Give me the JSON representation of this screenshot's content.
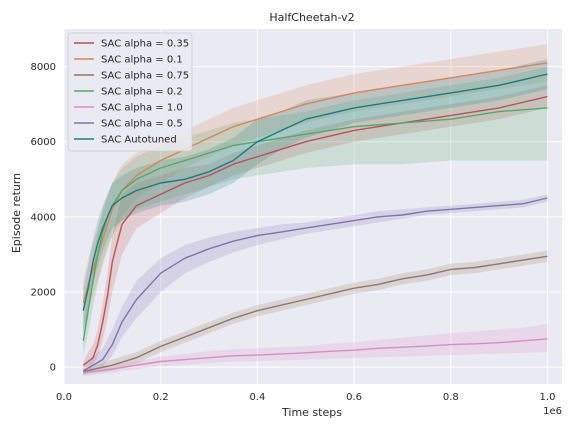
{
  "chart_data": {
    "type": "line",
    "title": "HalfCheetah-v2",
    "xlabel": "Time steps",
    "ylabel": "Episode return",
    "x_multiplier_label": "1e6",
    "xlim": [
      0.0,
      1.03
    ],
    "ylim": [
      -450,
      9000
    ],
    "x_ticks": [
      0.0,
      0.2,
      0.4,
      0.6,
      0.8,
      1.0
    ],
    "x_tick_labels": [
      "0.0",
      "0.2",
      "0.4",
      "0.6",
      "0.8",
      "1.0"
    ],
    "y_ticks": [
      0,
      2000,
      4000,
      6000,
      8000
    ],
    "y_tick_labels": [
      "0",
      "2000",
      "4000",
      "6000",
      "8000"
    ],
    "grid": true,
    "legend_position": "top-left",
    "series": [
      {
        "name": "SAC alpha = 0.35",
        "color": "#c44e52",
        "x": [
          0.04,
          0.05,
          0.06,
          0.07,
          0.08,
          0.09,
          0.1,
          0.12,
          0.15,
          0.2,
          0.25,
          0.3,
          0.35,
          0.4,
          0.45,
          0.5,
          0.6,
          0.7,
          0.8,
          0.9,
          1.0
        ],
        "y": [
          50,
          150,
          250,
          600,
          1200,
          1900,
          2800,
          3800,
          4300,
          4600,
          4900,
          5100,
          5400,
          5600,
          5800,
          6000,
          6300,
          6500,
          6700,
          6900,
          7200
        ],
        "lower": [
          0,
          0,
          50,
          300,
          700,
          1300,
          2000,
          3000,
          3700,
          4100,
          4500,
          4800,
          5100,
          5300,
          5500,
          5700,
          6000,
          6200,
          6400,
          6600,
          6900
        ],
        "upper": [
          150,
          400,
          600,
          1000,
          1700,
          2500,
          3500,
          4600,
          4900,
          5100,
          5300,
          5400,
          5700,
          5900,
          6100,
          6300,
          6600,
          6800,
          7000,
          7200,
          7500
        ]
      },
      {
        "name": "SAC alpha = 0.1",
        "color": "#dd8452",
        "x": [
          0.04,
          0.05,
          0.06,
          0.07,
          0.08,
          0.09,
          0.1,
          0.12,
          0.15,
          0.2,
          0.25,
          0.3,
          0.35,
          0.4,
          0.45,
          0.5,
          0.6,
          0.7,
          0.8,
          0.9,
          1.0
        ],
        "y": [
          1700,
          2200,
          2600,
          3000,
          3400,
          3800,
          4200,
          4700,
          5100,
          5500,
          5800,
          6100,
          6400,
          6600,
          6800,
          7000,
          7300,
          7500,
          7700,
          7900,
          8100
        ],
        "lower": [
          1000,
          1500,
          1900,
          2300,
          2700,
          3100,
          3500,
          4000,
          4500,
          4900,
          5300,
          5600,
          5900,
          6100,
          6300,
          6500,
          6800,
          7000,
          7200,
          7400,
          7600
        ],
        "upper": [
          2300,
          2900,
          3300,
          3700,
          4100,
          4500,
          4900,
          5400,
          5700,
          6100,
          6300,
          6600,
          6900,
          7100,
          7300,
          7500,
          7800,
          8000,
          8200,
          8400,
          8600
        ]
      },
      {
        "name": "SAC alpha = 0.75",
        "color": "#937860",
        "x": [
          0.04,
          0.1,
          0.15,
          0.2,
          0.25,
          0.3,
          0.35,
          0.4,
          0.45,
          0.5,
          0.55,
          0.6,
          0.65,
          0.7,
          0.75,
          0.8,
          0.85,
          0.9,
          0.95,
          1.0
        ],
        "y": [
          -120,
          50,
          250,
          550,
          800,
          1050,
          1300,
          1500,
          1650,
          1800,
          1950,
          2100,
          2200,
          2350,
          2450,
          2600,
          2650,
          2750,
          2850,
          2950
        ],
        "lower": [
          -200,
          -100,
          100,
          400,
          650,
          900,
          1150,
          1350,
          1500,
          1650,
          1800,
          1950,
          2050,
          2200,
          2300,
          2450,
          2500,
          2600,
          2700,
          2800
        ],
        "upper": [
          -50,
          200,
          400,
          700,
          950,
          1200,
          1450,
          1650,
          1800,
          1950,
          2100,
          2250,
          2350,
          2500,
          2600,
          2750,
          2800,
          2900,
          3000,
          3100
        ]
      },
      {
        "name": "SAC alpha = 0.2",
        "color": "#55a868",
        "x": [
          0.04,
          0.05,
          0.06,
          0.07,
          0.08,
          0.09,
          0.1,
          0.12,
          0.15,
          0.2,
          0.25,
          0.3,
          0.35,
          0.4,
          0.45,
          0.5,
          0.6,
          0.7,
          0.8,
          0.9,
          1.0
        ],
        "y": [
          700,
          1500,
          2300,
          3000,
          3600,
          4000,
          4300,
          4700,
          5000,
          5300,
          5500,
          5700,
          5900,
          6000,
          6100,
          6200,
          6400,
          6500,
          6600,
          6800,
          6900
        ],
        "lower": [
          300,
          900,
          1600,
          2200,
          2800,
          3200,
          3500,
          3900,
          4200,
          4400,
          4600,
          4800,
          5000,
          5100,
          5200,
          5300,
          5400,
          5400,
          5500,
          5500,
          5500
        ],
        "upper": [
          1100,
          2000,
          2900,
          3600,
          4200,
          4600,
          4900,
          5300,
          5600,
          5900,
          6100,
          6300,
          6500,
          6600,
          6700,
          6800,
          7100,
          7300,
          7500,
          7700,
          8000
        ]
      },
      {
        "name": "SAC alpha = 1.0",
        "color": "#da8bc3",
        "x": [
          0.04,
          0.1,
          0.15,
          0.2,
          0.25,
          0.3,
          0.35,
          0.4,
          0.45,
          0.5,
          0.55,
          0.6,
          0.65,
          0.7,
          0.75,
          0.8,
          0.85,
          0.9,
          0.95,
          1.0
        ],
        "y": [
          -150,
          -50,
          50,
          150,
          200,
          250,
          300,
          320,
          350,
          380,
          420,
          450,
          500,
          530,
          560,
          600,
          620,
          650,
          700,
          750
        ],
        "lower": [
          -250,
          -150,
          -50,
          20,
          60,
          100,
          140,
          160,
          180,
          200,
          220,
          240,
          260,
          280,
          300,
          320,
          340,
          360,
          380,
          400
        ],
        "upper": [
          -50,
          50,
          150,
          280,
          350,
          420,
          470,
          500,
          530,
          560,
          620,
          660,
          720,
          780,
          840,
          900,
          950,
          1000,
          1050,
          1150
        ]
      },
      {
        "name": "SAC alpha = 0.5",
        "color": "#8172b3",
        "x": [
          0.04,
          0.08,
          0.1,
          0.12,
          0.15,
          0.2,
          0.25,
          0.3,
          0.35,
          0.4,
          0.45,
          0.5,
          0.55,
          0.6,
          0.65,
          0.7,
          0.75,
          0.8,
          0.85,
          0.9,
          0.95,
          1.0
        ],
        "y": [
          -100,
          200,
          600,
          1200,
          1800,
          2500,
          2900,
          3150,
          3350,
          3500,
          3600,
          3700,
          3800,
          3900,
          4000,
          4050,
          4150,
          4200,
          4250,
          4300,
          4350,
          4500
        ],
        "lower": [
          -200,
          0,
          300,
          800,
          1300,
          2000,
          2500,
          2800,
          3050,
          3250,
          3400,
          3550,
          3650,
          3750,
          3850,
          3950,
          4050,
          4100,
          4150,
          4200,
          4250,
          4400
        ],
        "upper": [
          0,
          500,
          1000,
          1600,
          2300,
          2900,
          3250,
          3450,
          3600,
          3700,
          3800,
          3850,
          3950,
          4050,
          4150,
          4200,
          4250,
          4300,
          4350,
          4400,
          4450,
          4600
        ]
      },
      {
        "name": "SAC Autotuned",
        "color": "#137f85",
        "x": [
          0.04,
          0.05,
          0.06,
          0.07,
          0.08,
          0.09,
          0.1,
          0.12,
          0.15,
          0.2,
          0.25,
          0.3,
          0.35,
          0.4,
          0.45,
          0.5,
          0.6,
          0.7,
          0.8,
          0.9,
          1.0
        ],
        "y": [
          1500,
          2100,
          2800,
          3300,
          3700,
          4000,
          4300,
          4500,
          4700,
          4900,
          5000,
          5200,
          5500,
          6000,
          6300,
          6600,
          6900,
          7100,
          7300,
          7500,
          7800
        ],
        "lower": [
          900,
          1500,
          2200,
          2700,
          3100,
          3400,
          3700,
          3900,
          4100,
          4300,
          4400,
          4600,
          4900,
          5400,
          5800,
          6100,
          6500,
          6700,
          6900,
          7100,
          7400
        ],
        "upper": [
          2100,
          2700,
          3400,
          3900,
          4300,
          4600,
          4900,
          5100,
          5300,
          5500,
          5600,
          5800,
          6100,
          6600,
          6800,
          7100,
          7300,
          7500,
          7700,
          7900,
          8200
        ]
      }
    ]
  }
}
